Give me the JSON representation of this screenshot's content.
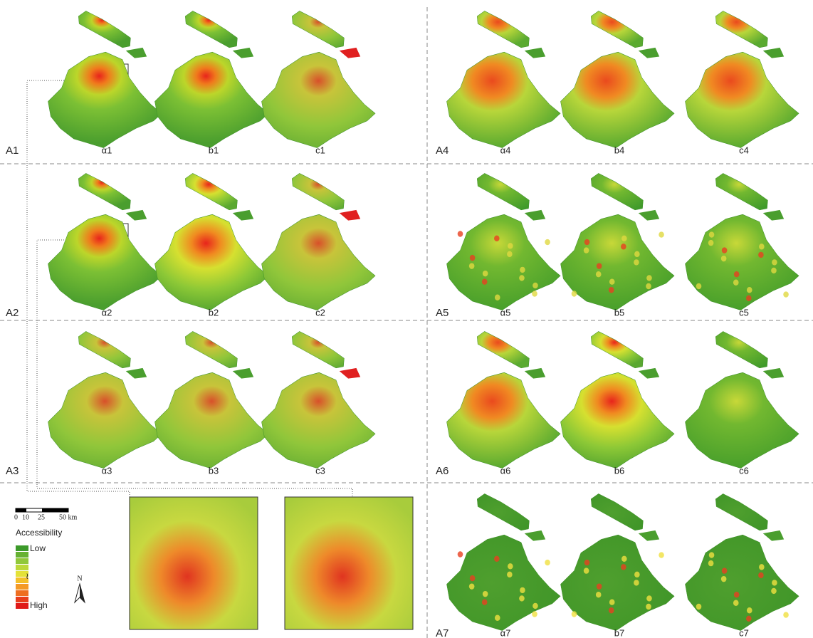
{
  "rows": [
    {
      "label": "A1",
      "panels": [
        "α1",
        "b1",
        "c1"
      ]
    },
    {
      "label": "A2",
      "panels": [
        "α2",
        "b2",
        "c2"
      ]
    },
    {
      "label": "A3",
      "panels": [
        "α3",
        "b3",
        "c3"
      ]
    },
    {
      "label": "A4",
      "panels": [
        "α4",
        "b4",
        "c4"
      ]
    },
    {
      "label": "A5",
      "panels": [
        "α5",
        "b5",
        "c5"
      ]
    },
    {
      "label": "A6",
      "panels": [
        "α6",
        "b6",
        "c6"
      ]
    },
    {
      "label": "A7",
      "panels": [
        "α7",
        "b7",
        "c7"
      ]
    }
  ],
  "scale_bar": {
    "ticks": [
      "0",
      "10",
      "25",
      "50 km"
    ]
  },
  "legend": {
    "title": "Accessibility",
    "low": "Low",
    "mid": "≀",
    "high": "High"
  },
  "north": "N"
}
